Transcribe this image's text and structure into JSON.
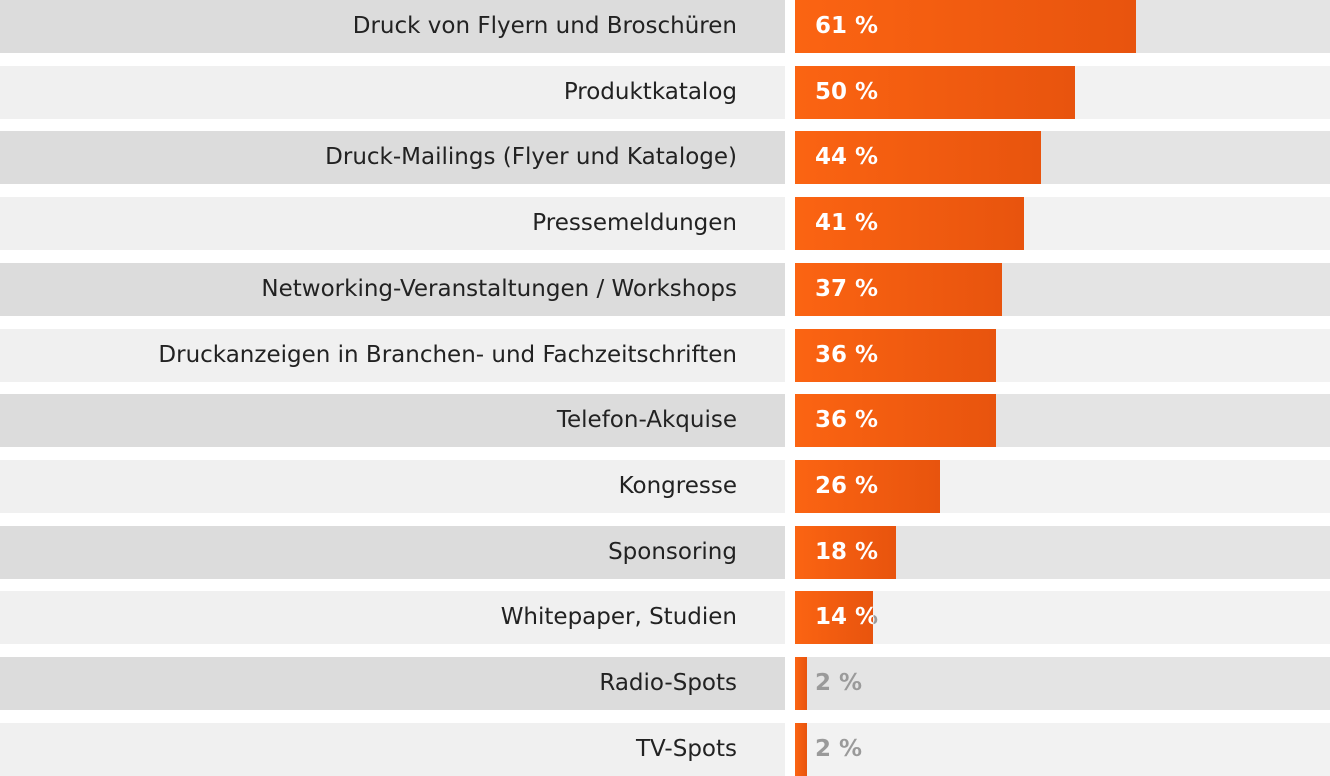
{
  "chart_data": {
    "type": "bar",
    "orientation": "horizontal",
    "categories": [
      "Druck von Flyern und Broschüren",
      "Produktkatalog",
      "Druck-Mailings (Flyer und Kataloge)",
      "Pressemeldungen",
      "Networking-Veranstaltungen / Workshops",
      "Druckanzeigen in Branchen- und Fachzeitschriften",
      "Telefon-Akquise",
      "Kongresse",
      "Sponsoring",
      "Whitepaper, Studien",
      "Radio-Spots",
      "TV-Spots"
    ],
    "values": [
      61,
      50,
      44,
      41,
      37,
      36,
      36,
      26,
      18,
      14,
      2,
      2
    ],
    "value_labels": [
      "61 %",
      "50 %",
      "44 %",
      "41 %",
      "37 %",
      "36 %",
      "36 %",
      "26 %",
      "18 %",
      "14 %",
      "2 %",
      "2 %"
    ],
    "unit": "%",
    "xlim": [
      0,
      100
    ],
    "grid": false,
    "colors": {
      "bar": "#f26010",
      "row_dark": "#dcdcdc",
      "row_light": "#f0f0f0",
      "label_text": "#222222",
      "value_text": "#ffffff",
      "value_text_outside": "#9a9a9a"
    }
  }
}
